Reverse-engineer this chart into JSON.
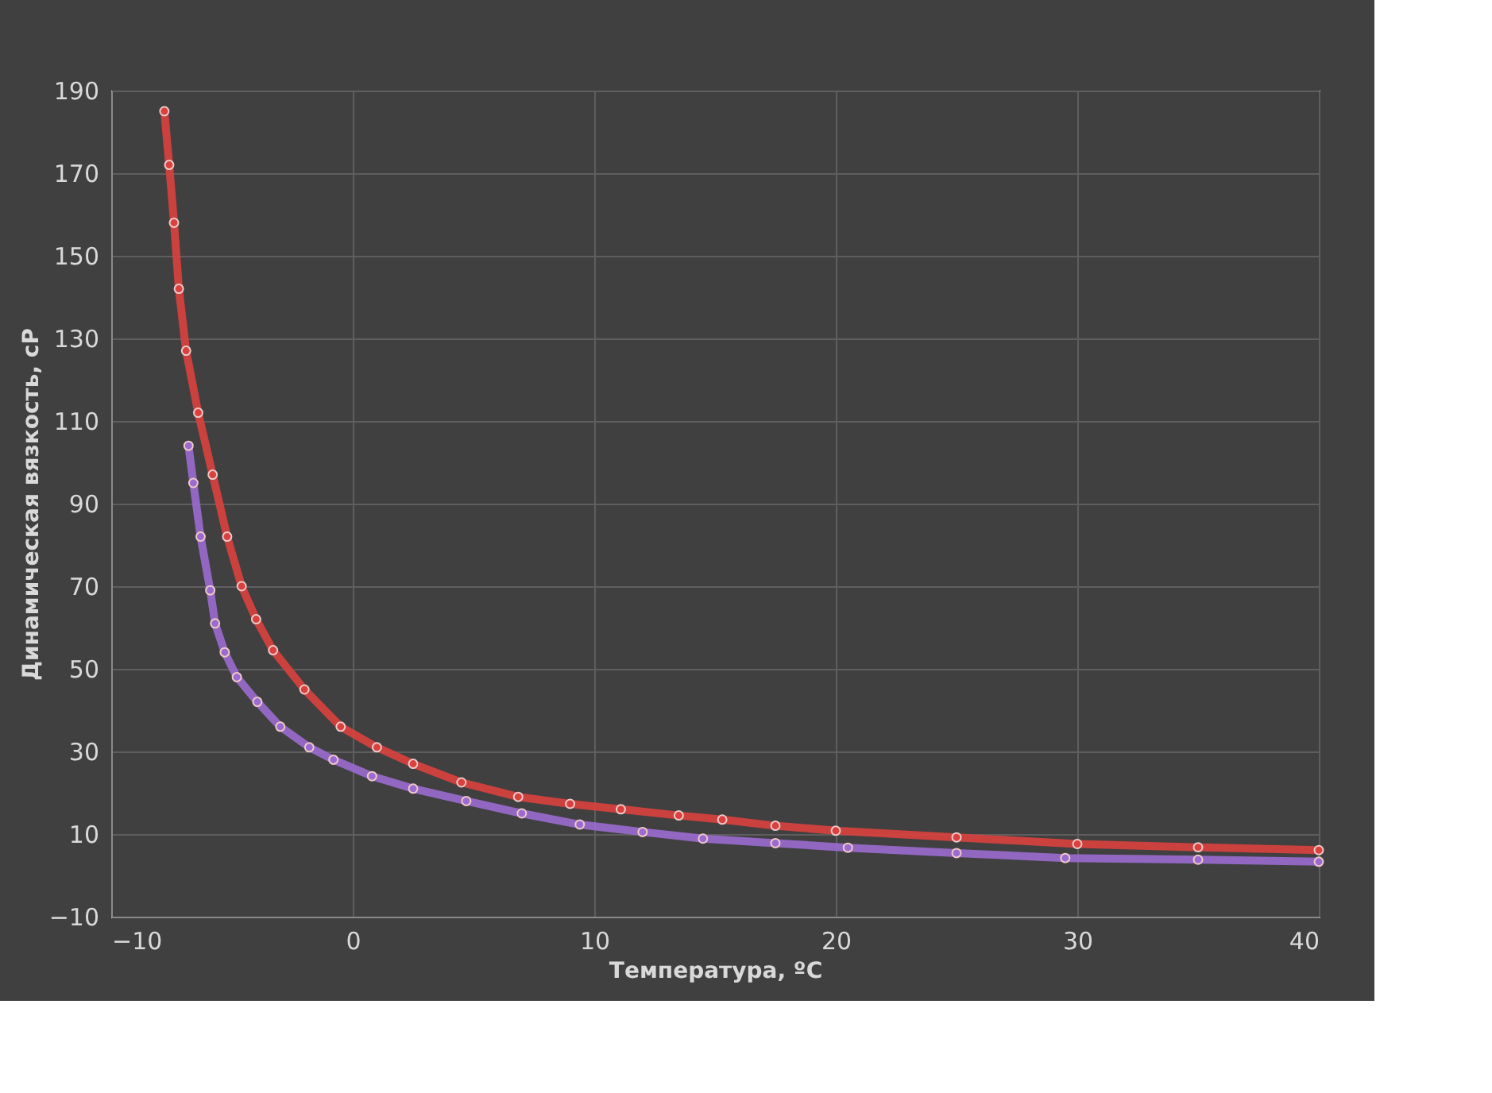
{
  "chart_data": {
    "type": "line",
    "xlabel": "Температура, ºC",
    "ylabel": "Динамическая вязкость, cP",
    "xlim": [
      -10,
      40
    ],
    "xticks": [
      -10,
      0,
      10,
      20,
      30,
      40
    ],
    "ylim": [
      -10,
      190
    ],
    "yticks": [
      -10,
      10,
      30,
      50,
      70,
      90,
      110,
      130,
      150,
      170,
      190
    ],
    "grid": true,
    "marker": "circle",
    "line_style": "solid",
    "series": [
      {
        "color": "#9b6ccf",
        "x": [
          -6.8,
          -6.6,
          -6.3,
          -5.9,
          -5.7,
          -5.3,
          -4.8,
          -3.95,
          -3.0,
          -1.8,
          -0.8,
          0.8,
          2.5,
          4.7,
          7.0,
          9.4,
          12.0,
          14.5,
          17.5,
          20.5,
          25.0,
          29.5,
          35.0,
          40.0
        ],
        "values": [
          104,
          95,
          82,
          69,
          61,
          54,
          48,
          42,
          36,
          31,
          28,
          24,
          21,
          18,
          15,
          12.3,
          10.5,
          8.9,
          7.8,
          6.7,
          5.4,
          4.2,
          3.8,
          3.3
        ]
      },
      {
        "color": "#d9413e",
        "x": [
          -7.8,
          -7.6,
          -7.4,
          -7.2,
          -6.9,
          -6.4,
          -5.8,
          -5.2,
          -4.6,
          -4.0,
          -3.3,
          -2.0,
          -0.5,
          1.0,
          2.5,
          4.5,
          6.85,
          9.0,
          11.1,
          13.5,
          15.3,
          17.5,
          20.0,
          25.0,
          30.0,
          35.0,
          40.0
        ],
        "values": [
          185,
          172,
          158,
          142,
          127,
          112,
          97,
          82,
          70,
          62,
          54.5,
          45,
          36,
          31,
          27,
          22.5,
          19,
          17.3,
          16,
          14.5,
          13.5,
          12,
          10.8,
          9.2,
          7.6,
          6.8,
          6.1
        ]
      }
    ]
  }
}
